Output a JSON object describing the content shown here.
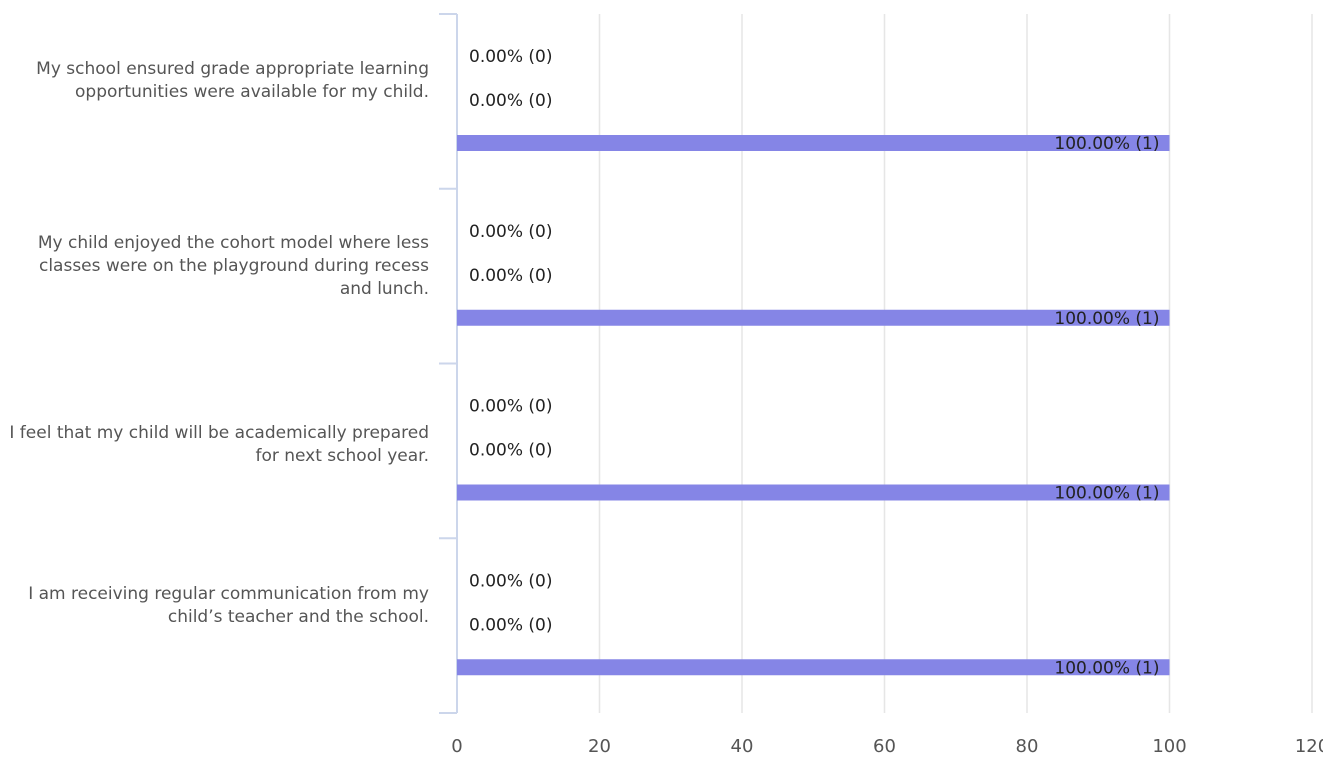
{
  "chart_data": {
    "type": "bar",
    "orientation": "horizontal",
    "categories": [
      "My school ensured grade appropriate learning opportunities were available for my child.",
      "My child enjoyed the cohort model where less classes were on the playground during recess and lunch.",
      "I feel that my child will be academically prepared for next school year.",
      "I am receiving regular communication from my child’s teacher and the school."
    ],
    "series": [
      {
        "values": [
          0,
          0,
          0,
          0
        ],
        "labels": [
          "0.00% (0)",
          "0.00% (0)",
          "0.00% (0)",
          "0.00% (0)"
        ],
        "color": "#8585e6"
      },
      {
        "values": [
          0,
          0,
          0,
          0
        ],
        "labels": [
          "0.00% (0)",
          "0.00% (0)",
          "0.00% (0)",
          "0.00% (0)"
        ],
        "color": "#8585e6"
      },
      {
        "values": [
          100,
          100,
          100,
          100
        ],
        "labels": [
          "100.00% (1)",
          "100.00% (1)",
          "100.00% (1)",
          "100.00% (1)"
        ],
        "color": "#8585e6"
      }
    ],
    "xlim": [
      0,
      120
    ],
    "xticks": [
      0,
      20,
      40,
      60,
      80,
      100,
      120
    ],
    "grid": true,
    "title": "",
    "xlabel": "",
    "ylabel": ""
  }
}
